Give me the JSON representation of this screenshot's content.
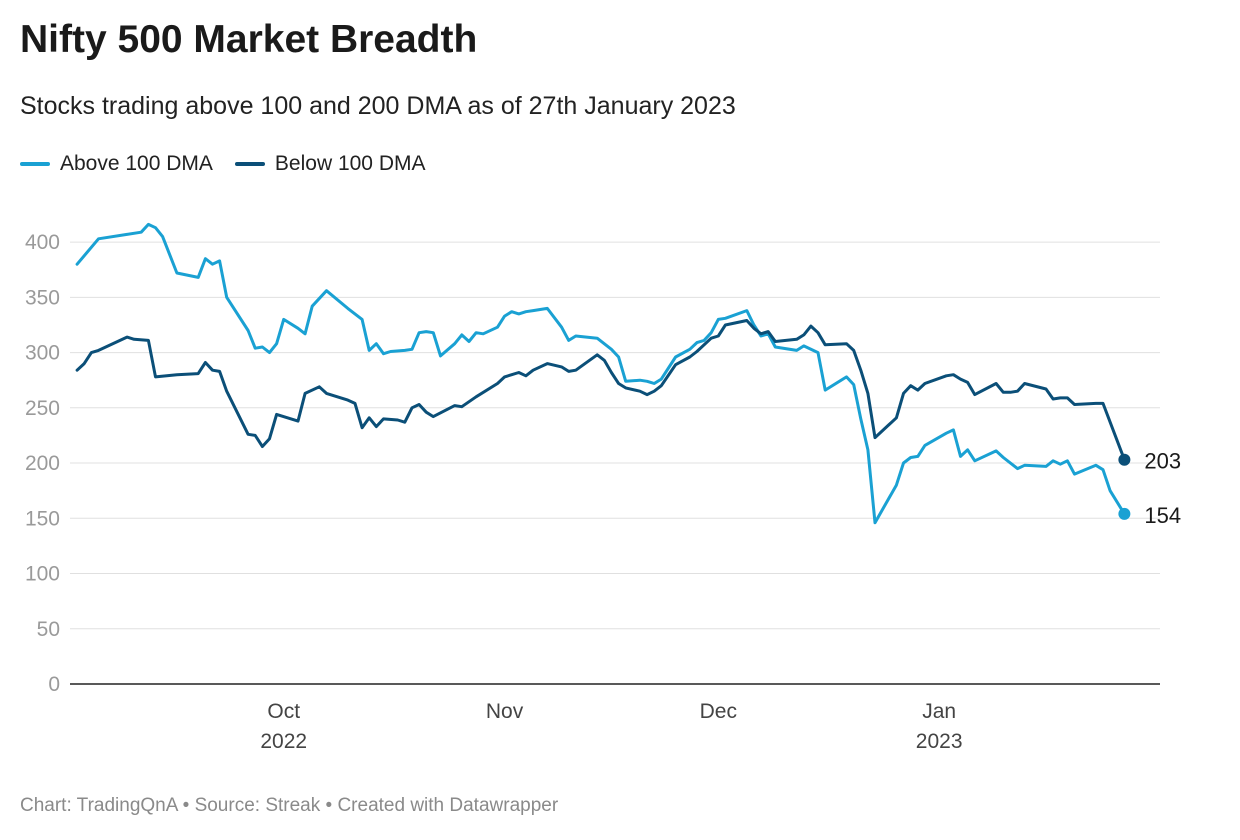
{
  "header": {
    "title": "Nifty 500 Market Breadth",
    "subtitle": "Stocks trading above 100 and 200 DMA as of 27th January 2023"
  },
  "footer": {
    "credit": "Chart: TradingQnA • Source: Streak • Created with Datawrapper"
  },
  "colors": {
    "above": "#1aa1d3",
    "below": "#0b4f78",
    "grid": "#e0e0e0",
    "axis_text": "#9a9a9a",
    "axis_line": "#222222"
  },
  "chart_data": {
    "type": "line",
    "title": "Nifty 500 Market Breadth",
    "subtitle": "Stocks trading above 100 and 200 DMA as of 27th January 2023",
    "xlim": [
      "2022-09-01",
      "2023-02-01"
    ],
    "ylim": [
      0,
      420
    ],
    "y_ticks": [
      0,
      50,
      100,
      150,
      200,
      250,
      300,
      350,
      400
    ],
    "x_ticks": [
      {
        "date": "2022-10-01",
        "label": "Oct",
        "sublabel": "2022"
      },
      {
        "date": "2022-11-01",
        "label": "Nov",
        "sublabel": ""
      },
      {
        "date": "2022-12-01",
        "label": "Dec",
        "sublabel": ""
      },
      {
        "date": "2023-01-01",
        "label": "Jan",
        "sublabel": "2023"
      }
    ],
    "grid": true,
    "legend_position": "top-left",
    "series": [
      {
        "name": "Above 100 DMA",
        "color": "#1aa1d3",
        "end_label": "154",
        "points": [
          [
            "2022-09-02",
            380
          ],
          [
            "2022-09-05",
            403
          ],
          [
            "2022-09-09",
            407
          ],
          [
            "2022-09-11",
            409
          ],
          [
            "2022-09-12",
            416
          ],
          [
            "2022-09-13",
            413
          ],
          [
            "2022-09-14",
            405
          ],
          [
            "2022-09-16",
            372
          ],
          [
            "2022-09-19",
            368
          ],
          [
            "2022-09-20",
            385
          ],
          [
            "2022-09-21",
            380
          ],
          [
            "2022-09-22",
            383
          ],
          [
            "2022-09-23",
            350
          ],
          [
            "2022-09-26",
            320
          ],
          [
            "2022-09-27",
            304
          ],
          [
            "2022-09-28",
            305
          ],
          [
            "2022-09-29",
            300
          ],
          [
            "2022-09-30",
            308
          ],
          [
            "2022-10-01",
            330
          ],
          [
            "2022-10-03",
            322
          ],
          [
            "2022-10-04",
            317
          ],
          [
            "2022-10-05",
            342
          ],
          [
            "2022-10-07",
            356
          ],
          [
            "2022-10-10",
            340
          ],
          [
            "2022-10-12",
            330
          ],
          [
            "2022-10-13",
            302
          ],
          [
            "2022-10-14",
            308
          ],
          [
            "2022-10-15",
            299
          ],
          [
            "2022-10-16",
            301
          ],
          [
            "2022-10-18",
            302
          ],
          [
            "2022-10-19",
            303
          ],
          [
            "2022-10-20",
            318
          ],
          [
            "2022-10-21",
            319
          ],
          [
            "2022-10-22",
            318
          ],
          [
            "2022-10-23",
            297
          ],
          [
            "2022-10-25",
            308
          ],
          [
            "2022-10-26",
            316
          ],
          [
            "2022-10-27",
            310
          ],
          [
            "2022-10-28",
            318
          ],
          [
            "2022-10-29",
            317
          ],
          [
            "2022-10-31",
            323
          ],
          [
            "2022-11-01",
            333
          ],
          [
            "2022-11-02",
            337
          ],
          [
            "2022-11-03",
            335
          ],
          [
            "2022-11-04",
            337
          ],
          [
            "2022-11-05",
            338
          ],
          [
            "2022-11-07",
            340
          ],
          [
            "2022-11-09",
            323
          ],
          [
            "2022-11-10",
            311
          ],
          [
            "2022-11-11",
            315
          ],
          [
            "2022-11-14",
            313
          ],
          [
            "2022-11-16",
            303
          ],
          [
            "2022-11-17",
            296
          ],
          [
            "2022-11-18",
            274
          ],
          [
            "2022-11-20",
            275
          ],
          [
            "2022-11-21",
            274
          ],
          [
            "2022-11-22",
            272
          ],
          [
            "2022-11-23",
            276
          ],
          [
            "2022-11-25",
            296
          ],
          [
            "2022-11-27",
            303
          ],
          [
            "2022-11-28",
            309
          ],
          [
            "2022-11-29",
            311
          ],
          [
            "2022-11-30",
            318
          ],
          [
            "2022-12-01",
            330
          ],
          [
            "2022-12-02",
            331
          ],
          [
            "2022-12-05",
            338
          ],
          [
            "2022-12-06",
            325
          ],
          [
            "2022-12-07",
            315
          ],
          [
            "2022-12-08",
            317
          ],
          [
            "2022-12-09",
            305
          ],
          [
            "2022-12-12",
            302
          ],
          [
            "2022-12-13",
            306
          ],
          [
            "2022-12-15",
            300
          ],
          [
            "2022-12-16",
            266
          ],
          [
            "2022-12-19",
            278
          ],
          [
            "2022-12-20",
            271
          ],
          [
            "2022-12-21",
            240
          ],
          [
            "2022-12-22",
            212
          ],
          [
            "2022-12-23",
            146
          ],
          [
            "2022-12-26",
            180
          ],
          [
            "2022-12-27",
            200
          ],
          [
            "2022-12-28",
            205
          ],
          [
            "2022-12-29",
            206
          ],
          [
            "2022-12-30",
            216
          ],
          [
            "2023-01-02",
            227
          ],
          [
            "2023-01-03",
            230
          ],
          [
            "2023-01-04",
            206
          ],
          [
            "2023-01-05",
            212
          ],
          [
            "2023-01-06",
            202
          ],
          [
            "2023-01-09",
            211
          ],
          [
            "2023-01-10",
            205
          ],
          [
            "2023-01-12",
            195
          ],
          [
            "2023-01-13",
            198
          ],
          [
            "2023-01-16",
            197
          ],
          [
            "2023-01-17",
            202
          ],
          [
            "2023-01-18",
            199
          ],
          [
            "2023-01-19",
            202
          ],
          [
            "2023-01-20",
            190
          ],
          [
            "2023-01-23",
            198
          ],
          [
            "2023-01-24",
            194
          ],
          [
            "2023-01-25",
            175
          ],
          [
            "2023-01-27",
            154
          ]
        ]
      },
      {
        "name": "Below 100 DMA",
        "color": "#0b4f78",
        "end_label": "203",
        "points": [
          [
            "2022-09-02",
            284
          ],
          [
            "2022-09-03",
            290
          ],
          [
            "2022-09-04",
            300
          ],
          [
            "2022-09-05",
            302
          ],
          [
            "2022-09-09",
            314
          ],
          [
            "2022-09-10",
            312
          ],
          [
            "2022-09-12",
            311
          ],
          [
            "2022-09-13",
            278
          ],
          [
            "2022-09-16",
            280
          ],
          [
            "2022-09-19",
            281
          ],
          [
            "2022-09-20",
            291
          ],
          [
            "2022-09-21",
            284
          ],
          [
            "2022-09-22",
            283
          ],
          [
            "2022-09-23",
            265
          ],
          [
            "2022-09-26",
            226
          ],
          [
            "2022-09-27",
            225
          ],
          [
            "2022-09-28",
            215
          ],
          [
            "2022-09-29",
            222
          ],
          [
            "2022-09-30",
            244
          ],
          [
            "2022-10-03",
            238
          ],
          [
            "2022-10-04",
            263
          ],
          [
            "2022-10-06",
            269
          ],
          [
            "2022-10-07",
            263
          ],
          [
            "2022-10-10",
            257
          ],
          [
            "2022-10-11",
            254
          ],
          [
            "2022-10-12",
            232
          ],
          [
            "2022-10-13",
            241
          ],
          [
            "2022-10-14",
            233
          ],
          [
            "2022-10-15",
            240
          ],
          [
            "2022-10-17",
            239
          ],
          [
            "2022-10-18",
            237
          ],
          [
            "2022-10-19",
            250
          ],
          [
            "2022-10-20",
            253
          ],
          [
            "2022-10-21",
            246
          ],
          [
            "2022-10-22",
            242
          ],
          [
            "2022-10-25",
            252
          ],
          [
            "2022-10-26",
            251
          ],
          [
            "2022-10-28",
            260
          ],
          [
            "2022-10-31",
            272
          ],
          [
            "2022-11-01",
            278
          ],
          [
            "2022-11-02",
            280
          ],
          [
            "2022-11-03",
            282
          ],
          [
            "2022-11-04",
            279
          ],
          [
            "2022-11-05",
            284
          ],
          [
            "2022-11-07",
            290
          ],
          [
            "2022-11-09",
            287
          ],
          [
            "2022-11-10",
            283
          ],
          [
            "2022-11-11",
            284
          ],
          [
            "2022-11-14",
            298
          ],
          [
            "2022-11-15",
            293
          ],
          [
            "2022-11-16",
            282
          ],
          [
            "2022-11-17",
            272
          ],
          [
            "2022-11-18",
            268
          ],
          [
            "2022-11-20",
            265
          ],
          [
            "2022-11-21",
            262
          ],
          [
            "2022-11-22",
            265
          ],
          [
            "2022-11-23",
            270
          ],
          [
            "2022-11-25",
            289
          ],
          [
            "2022-11-27",
            296
          ],
          [
            "2022-11-28",
            301
          ],
          [
            "2022-11-30",
            313
          ],
          [
            "2022-12-01",
            315
          ],
          [
            "2022-12-02",
            325
          ],
          [
            "2022-12-05",
            329
          ],
          [
            "2022-12-06",
            322
          ],
          [
            "2022-12-07",
            317
          ],
          [
            "2022-12-08",
            319
          ],
          [
            "2022-12-09",
            310
          ],
          [
            "2022-12-12",
            312
          ],
          [
            "2022-12-13",
            316
          ],
          [
            "2022-12-14",
            324
          ],
          [
            "2022-12-15",
            318
          ],
          [
            "2022-12-16",
            307
          ],
          [
            "2022-12-19",
            308
          ],
          [
            "2022-12-20",
            302
          ],
          [
            "2022-12-21",
            284
          ],
          [
            "2022-12-22",
            263
          ],
          [
            "2022-12-23",
            223
          ],
          [
            "2022-12-26",
            241
          ],
          [
            "2022-12-27",
            263
          ],
          [
            "2022-12-28",
            270
          ],
          [
            "2022-12-29",
            266
          ],
          [
            "2022-12-30",
            272
          ],
          [
            "2023-01-02",
            279
          ],
          [
            "2023-01-03",
            280
          ],
          [
            "2023-01-04",
            276
          ],
          [
            "2023-01-05",
            273
          ],
          [
            "2023-01-06",
            262
          ],
          [
            "2023-01-09",
            272
          ],
          [
            "2023-01-10",
            264
          ],
          [
            "2023-01-11",
            264
          ],
          [
            "2023-01-12",
            265
          ],
          [
            "2023-01-13",
            272
          ],
          [
            "2023-01-16",
            267
          ],
          [
            "2023-01-17",
            258
          ],
          [
            "2023-01-18",
            259
          ],
          [
            "2023-01-19",
            259
          ],
          [
            "2023-01-20",
            253
          ],
          [
            "2023-01-23",
            254
          ],
          [
            "2023-01-24",
            254
          ],
          [
            "2023-01-27",
            203
          ]
        ]
      }
    ]
  }
}
